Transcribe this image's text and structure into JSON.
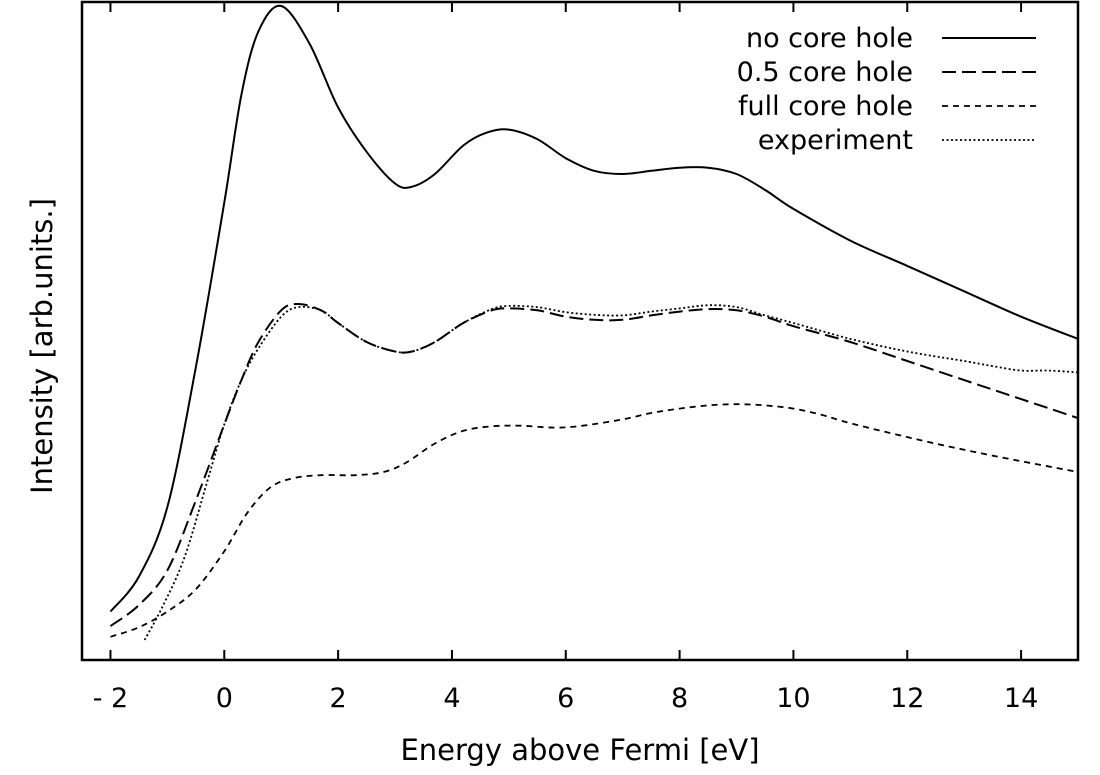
{
  "chart_data": {
    "type": "line",
    "title": "",
    "xlabel": "Energy above Fermi [eV]",
    "ylabel": "Intensity [arb.units.]",
    "xlim": [
      -2.5,
      15
    ],
    "ylim": [
      0,
      1.0
    ],
    "x_ticks": [
      -2,
      0,
      2,
      4,
      6,
      8,
      10,
      12,
      14
    ],
    "x_tick_labels": [
      "- 2",
      "0",
      "2",
      "4",
      "6",
      "8",
      "10",
      "12",
      "14"
    ],
    "y_ticks_shown": false,
    "grid": false,
    "legend_position": "top-right",
    "series": [
      {
        "name": "no core hole",
        "style": "solid",
        "points": [
          [
            -2.0,
            0.045
          ],
          [
            -1.5,
            0.1
          ],
          [
            -1.0,
            0.21
          ],
          [
            -0.5,
            0.43
          ],
          [
            0.0,
            0.69
          ],
          [
            0.3,
            0.86
          ],
          [
            0.6,
            0.96
          ],
          [
            1.0,
            1.0
          ],
          [
            1.5,
            0.94
          ],
          [
            2.0,
            0.84
          ],
          [
            2.5,
            0.77
          ],
          [
            3.0,
            0.72
          ],
          [
            3.3,
            0.715
          ],
          [
            3.7,
            0.735
          ],
          [
            4.2,
            0.78
          ],
          [
            4.6,
            0.8
          ],
          [
            5.0,
            0.805
          ],
          [
            5.5,
            0.79
          ],
          [
            6.0,
            0.76
          ],
          [
            6.5,
            0.74
          ],
          [
            7.0,
            0.735
          ],
          [
            7.5,
            0.74
          ],
          [
            8.0,
            0.745
          ],
          [
            8.5,
            0.745
          ],
          [
            9.0,
            0.735
          ],
          [
            9.5,
            0.71
          ],
          [
            10.0,
            0.68
          ],
          [
            11.0,
            0.63
          ],
          [
            12.0,
            0.59
          ],
          [
            13.0,
            0.55
          ],
          [
            14.0,
            0.51
          ],
          [
            15.0,
            0.475
          ]
        ]
      },
      {
        "name": "0.5 core hole",
        "style": "dashed",
        "points": [
          [
            -2.0,
            0.022
          ],
          [
            -1.5,
            0.055
          ],
          [
            -1.0,
            0.11
          ],
          [
            -0.5,
            0.22
          ],
          [
            0.0,
            0.34
          ],
          [
            0.3,
            0.41
          ],
          [
            0.6,
            0.47
          ],
          [
            1.0,
            0.52
          ],
          [
            1.3,
            0.53
          ],
          [
            1.7,
            0.52
          ],
          [
            2.0,
            0.5
          ],
          [
            2.5,
            0.47
          ],
          [
            3.0,
            0.455
          ],
          [
            3.3,
            0.455
          ],
          [
            3.7,
            0.47
          ],
          [
            4.2,
            0.5
          ],
          [
            4.7,
            0.52
          ],
          [
            5.0,
            0.523
          ],
          [
            5.5,
            0.52
          ],
          [
            6.0,
            0.51
          ],
          [
            6.5,
            0.505
          ],
          [
            7.0,
            0.505
          ],
          [
            7.5,
            0.512
          ],
          [
            8.0,
            0.518
          ],
          [
            8.5,
            0.522
          ],
          [
            9.0,
            0.52
          ],
          [
            9.5,
            0.51
          ],
          [
            10.0,
            0.495
          ],
          [
            11.0,
            0.47
          ],
          [
            12.0,
            0.44
          ],
          [
            13.0,
            0.41
          ],
          [
            14.0,
            0.38
          ],
          [
            15.0,
            0.35
          ]
        ]
      },
      {
        "name": "full core hole",
        "style": "short-dashed",
        "points": [
          [
            -2.0,
            0.005
          ],
          [
            -1.5,
            0.02
          ],
          [
            -1.0,
            0.045
          ],
          [
            -0.5,
            0.08
          ],
          [
            0.0,
            0.14
          ],
          [
            0.4,
            0.2
          ],
          [
            0.8,
            0.24
          ],
          [
            1.2,
            0.255
          ],
          [
            1.7,
            0.26
          ],
          [
            2.3,
            0.26
          ],
          [
            2.8,
            0.265
          ],
          [
            3.2,
            0.28
          ],
          [
            3.7,
            0.31
          ],
          [
            4.2,
            0.33
          ],
          [
            4.7,
            0.337
          ],
          [
            5.2,
            0.338
          ],
          [
            5.8,
            0.335
          ],
          [
            6.3,
            0.338
          ],
          [
            7.0,
            0.348
          ],
          [
            7.5,
            0.358
          ],
          [
            8.0,
            0.365
          ],
          [
            8.5,
            0.37
          ],
          [
            9.0,
            0.372
          ],
          [
            9.5,
            0.37
          ],
          [
            10.0,
            0.365
          ],
          [
            10.5,
            0.355
          ],
          [
            11.0,
            0.342
          ],
          [
            12.0,
            0.32
          ],
          [
            13.0,
            0.3
          ],
          [
            14.0,
            0.282
          ],
          [
            15.0,
            0.265
          ]
        ]
      },
      {
        "name": "experiment",
        "style": "dotted",
        "points": [
          [
            -1.4,
            0.0
          ],
          [
            -1.1,
            0.05
          ],
          [
            -0.7,
            0.13
          ],
          [
            -0.3,
            0.25
          ],
          [
            0.0,
            0.34
          ],
          [
            0.3,
            0.41
          ],
          [
            0.6,
            0.46
          ],
          [
            1.0,
            0.51
          ],
          [
            1.3,
            0.525
          ],
          [
            1.7,
            0.52
          ],
          [
            2.0,
            0.5
          ],
          [
            2.5,
            0.47
          ],
          [
            3.0,
            0.455
          ],
          [
            3.3,
            0.455
          ],
          [
            3.7,
            0.47
          ],
          [
            4.2,
            0.5
          ],
          [
            4.7,
            0.522
          ],
          [
            5.0,
            0.527
          ],
          [
            5.5,
            0.525
          ],
          [
            6.0,
            0.517
          ],
          [
            6.5,
            0.513
          ],
          [
            7.0,
            0.512
          ],
          [
            7.5,
            0.518
          ],
          [
            8.0,
            0.523
          ],
          [
            8.5,
            0.528
          ],
          [
            9.0,
            0.525
          ],
          [
            9.5,
            0.512
          ],
          [
            10.0,
            0.5
          ],
          [
            11.0,
            0.475
          ],
          [
            12.0,
            0.455
          ],
          [
            13.0,
            0.44
          ],
          [
            13.5,
            0.432
          ],
          [
            14.0,
            0.425
          ],
          [
            14.5,
            0.425
          ],
          [
            15.0,
            0.422
          ]
        ]
      }
    ]
  }
}
